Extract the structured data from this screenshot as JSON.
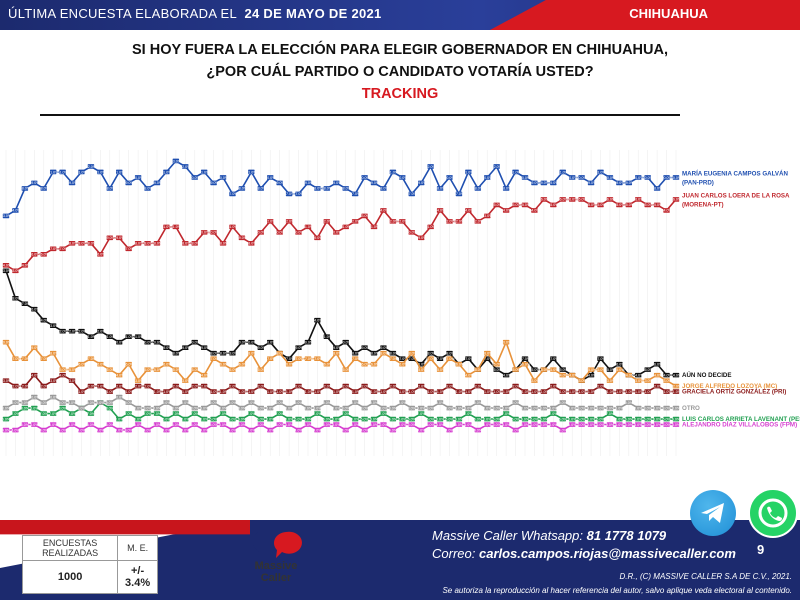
{
  "header": {
    "label": "ÚLTIMA ENCUESTA ELABORADA EL",
    "date": "24 DE MAYO DE 2021",
    "state": "CHIHUAHUA"
  },
  "title": {
    "line1": "SI HOY FUERA LA ELECCIÓN PARA ELEGIR GOBERNADOR EN CHIHUAHUA,",
    "line2": "¿POR CUÁL PARTIDO O CANDIDATO VOTARÍA USTED?",
    "line3": "TRACKING"
  },
  "chart_data": {
    "type": "line",
    "title": "TRACKING",
    "ylim": [
      0,
      55
    ],
    "grid": true,
    "x_count": 72,
    "series": [
      {
        "name": "MARÍA EUGENIA CAMPOS GALVÁN",
        "party": "(PAN-PRD)",
        "color": "#1f4fb0",
        "values": [
          43,
          44,
          48,
          49,
          48,
          51,
          51,
          49,
          51,
          52,
          51,
          48,
          51,
          49,
          50,
          48,
          49,
          51,
          53,
          52,
          50,
          51,
          49,
          50,
          47,
          48,
          51,
          48,
          50,
          49,
          47,
          47,
          49,
          48,
          48,
          49,
          48,
          47,
          50,
          49,
          48,
          51,
          50,
          47,
          49,
          52,
          48,
          50,
          47,
          51,
          48,
          50,
          52,
          48,
          51,
          50,
          49,
          49,
          49,
          51,
          50,
          50,
          49,
          51,
          50,
          49,
          49,
          50,
          50,
          48,
          50,
          50
        ]
      },
      {
        "name": "JUAN CARLOS LOERA  DE LA ROSA",
        "party": "(MORENA-PT)",
        "color": "#c0282e",
        "values": [
          34,
          33,
          34,
          36,
          36,
          37,
          37,
          38,
          38,
          38,
          36,
          39,
          39,
          37,
          38,
          38,
          38,
          41,
          41,
          38,
          38,
          40,
          40,
          38,
          41,
          39,
          38,
          40,
          42,
          40,
          42,
          40,
          41,
          39,
          42,
          40,
          41,
          42,
          43,
          41,
          44,
          42,
          42,
          40,
          39,
          41,
          44,
          42,
          42,
          44,
          42,
          43,
          45,
          44,
          45,
          45,
          44,
          46,
          45,
          46,
          46,
          46,
          45,
          45,
          46,
          45,
          45,
          46,
          45,
          45,
          44,
          46
        ]
      },
      {
        "name": "AÚN NO DECIDE",
        "color": "#111111",
        "values": [
          33,
          28,
          27,
          26,
          24,
          23,
          22,
          22,
          22,
          21,
          22,
          21,
          20,
          21,
          21,
          20,
          20,
          19,
          18,
          19,
          20,
          19,
          18,
          18,
          18,
          20,
          20,
          19,
          20,
          18,
          17,
          19,
          20,
          24,
          21,
          19,
          20,
          18,
          19,
          18,
          19,
          18,
          17,
          17,
          16,
          18,
          17,
          18,
          16,
          17,
          15,
          17,
          15,
          14,
          15,
          17,
          15,
          15,
          17,
          15,
          14,
          13,
          14,
          17,
          15,
          16,
          14,
          14,
          15,
          16,
          14,
          14
        ]
      },
      {
        "name": "JORGE ALFREDO LOZOYA (MC)",
        "color": "#e8923a",
        "values": [
          20,
          17,
          17,
          19,
          17,
          18,
          15,
          15,
          16,
          17,
          16,
          15,
          14,
          16,
          13,
          15,
          15,
          16,
          15,
          13,
          15,
          14,
          17,
          16,
          15,
          16,
          18,
          15,
          17,
          18,
          16,
          17,
          17,
          17,
          16,
          18,
          15,
          17,
          16,
          16,
          18,
          17,
          16,
          18,
          15,
          17,
          15,
          17,
          16,
          14,
          15,
          18,
          16,
          20,
          15,
          16,
          13,
          15,
          15,
          14,
          14,
          13,
          15,
          15,
          13,
          15,
          14,
          13,
          13,
          14,
          13,
          12
        ]
      },
      {
        "name": "GRACIELA ORTÍZ GONZÁLEZ (PRI)",
        "color": "#8b1a1a",
        "values": [
          13,
          12,
          12,
          14,
          12,
          13,
          14,
          13,
          11,
          12,
          12,
          11,
          12,
          11,
          12,
          12,
          11,
          11,
          12,
          11,
          12,
          12,
          11,
          11,
          12,
          11,
          11,
          12,
          11,
          11,
          11,
          12,
          11,
          11,
          12,
          11,
          12,
          11,
          12,
          11,
          11,
          12,
          11,
          11,
          12,
          11,
          11,
          12,
          11,
          11,
          12,
          11,
          11,
          11,
          12,
          11,
          11,
          11,
          12,
          11,
          11,
          11,
          11,
          12,
          11,
          11,
          11,
          11,
          11,
          12,
          11,
          11
        ]
      },
      {
        "name": "LUIS CARLOS ARRIETA LAVENANT (PES)",
        "color": "#22a052",
        "values": [
          6,
          7,
          8,
          8,
          7,
          7,
          8,
          7,
          8,
          7,
          9,
          8,
          6,
          7,
          6,
          7,
          7,
          6,
          7,
          6,
          7,
          6,
          6,
          7,
          6,
          6,
          7,
          6,
          6,
          7,
          6,
          6,
          6,
          7,
          6,
          6,
          7,
          6,
          6,
          6,
          7,
          6,
          6,
          6,
          7,
          6,
          6,
          6,
          6,
          7,
          6,
          6,
          6,
          7,
          6,
          6,
          6,
          6,
          7,
          6,
          6,
          6,
          6,
          6,
          7,
          6,
          6,
          6,
          6,
          6,
          6,
          6
        ]
      },
      {
        "name": "OTRO",
        "color": "#9a9a9a",
        "values": [
          8,
          9,
          9,
          10,
          9,
          10,
          9,
          9,
          8,
          9,
          9,
          9,
          10,
          9,
          8,
          8,
          8,
          9,
          8,
          9,
          8,
          8,
          9,
          8,
          9,
          8,
          9,
          8,
          8,
          9,
          8,
          9,
          8,
          8,
          9,
          8,
          8,
          9,
          8,
          9,
          8,
          8,
          9,
          8,
          8,
          8,
          9,
          8,
          8,
          8,
          9,
          8,
          8,
          8,
          9,
          8,
          8,
          8,
          8,
          9,
          8,
          8,
          8,
          8,
          8,
          8,
          9,
          8,
          8,
          8,
          8,
          8
        ]
      },
      {
        "name": "ALEJANDRO DÍAZ VILLALOBOS (FPM)",
        "color": "#d63fd0",
        "values": [
          4,
          4,
          5,
          5,
          4,
          5,
          4,
          5,
          4,
          5,
          4,
          5,
          4,
          4,
          5,
          4,
          5,
          4,
          5,
          4,
          5,
          4,
          5,
          5,
          4,
          5,
          4,
          5,
          4,
          5,
          5,
          4,
          5,
          4,
          5,
          5,
          4,
          5,
          4,
          5,
          5,
          4,
          5,
          5,
          4,
          5,
          5,
          4,
          5,
          5,
          4,
          5,
          5,
          5,
          4,
          5,
          5,
          5,
          5,
          4,
          5,
          5,
          5,
          5,
          5,
          5,
          5,
          5,
          5,
          5,
          5,
          5
        ]
      }
    ]
  },
  "stats": {
    "h1": "ENCUESTAS REALIZADAS",
    "h2": "M. E.",
    "v1": "1000",
    "v2": "+/- 3.4%"
  },
  "logo": {
    "line1": "Massive",
    "line2": "Caller"
  },
  "contact": {
    "whatsapp_label": "Massive Caller Whatsapp:",
    "whatsapp_number": "81 1778 1079",
    "email_label": "Correo:",
    "email": "carlos.campos.riojas@massivecaller.com"
  },
  "legal": {
    "line1": "D.R., (C) MASSIVE CALLER S.A DE C.V., 2021.",
    "line2": "Se autoriza la reproducción al hacer referencia del autor, salvo aplique veda electoral al contenido."
  },
  "page_number": "9",
  "icons": {
    "telegram": "telegram-icon",
    "whatsapp": "whatsapp-icon"
  }
}
